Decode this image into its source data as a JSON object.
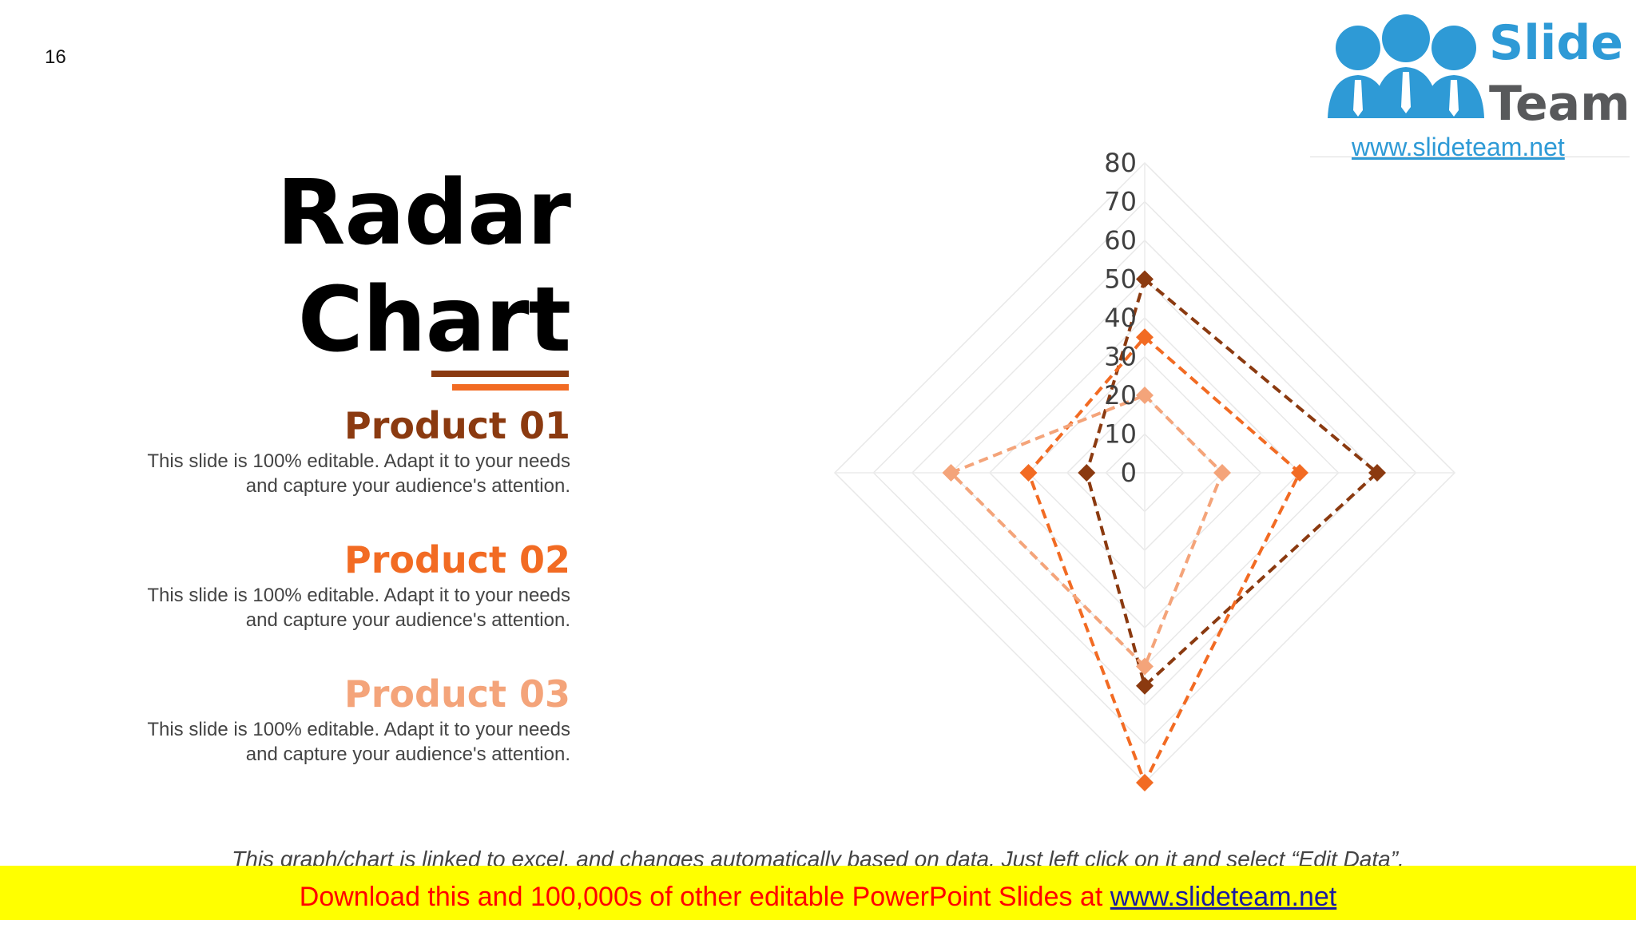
{
  "slide": {
    "page_number": "16",
    "title_line1": "Radar",
    "title_line2": "Chart"
  },
  "logo": {
    "word1": "Slide",
    "word2": "Team",
    "url": "www.slideteam.net"
  },
  "products": [
    {
      "title": "Product 01",
      "description_line1": "This slide is 100% editable. Adapt it to your needs",
      "description_line2": "and capture your audience's attention.",
      "color": "#8b3a10"
    },
    {
      "title": "Product 02",
      "description_line1": "This slide is 100% editable. Adapt it to your needs",
      "description_line2": "and capture your audience's attention.",
      "color": "#f26b23"
    },
    {
      "title": "Product 03",
      "description_line1": "This slide is 100% editable. Adapt it to your needs",
      "description_line2": "and capture your audience's attention.",
      "color": "#f4a47a"
    }
  ],
  "chart_data": {
    "type": "radar",
    "axes_count": 4,
    "rlim": [
      0,
      80
    ],
    "ticks": [
      0,
      10,
      20,
      30,
      40,
      50,
      60,
      70,
      80
    ],
    "grid": true,
    "series": [
      {
        "name": "Product 01",
        "values": [
          50,
          60,
          55,
          15
        ],
        "color": "#8b3a10"
      },
      {
        "name": "Product 02",
        "values": [
          35,
          40,
          80,
          30
        ],
        "color": "#f26b23"
      },
      {
        "name": "Product 03",
        "values": [
          20,
          20,
          50,
          50
        ],
        "color": "#f4a47a"
      }
    ]
  },
  "footnote": "This graph/chart is linked to excel, and changes automatically based on data. Just left click on it and select “Edit Data”.",
  "download_bar": {
    "text": "Download this and 100,000s of other editable PowerPoint Slides at ",
    "url": "www.slideteam.net"
  }
}
